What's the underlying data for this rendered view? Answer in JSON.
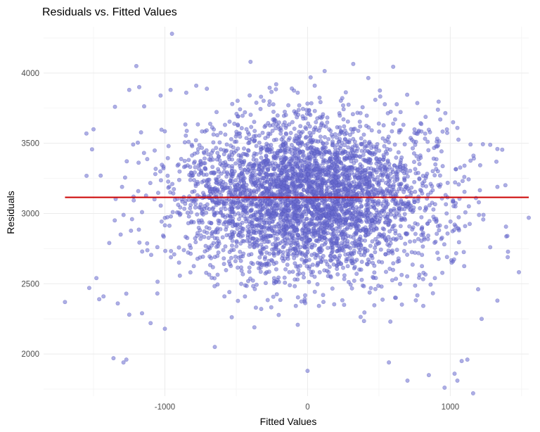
{
  "chart_data": {
    "type": "scatter",
    "title": "Residuals vs. Fitted Values",
    "xlabel": "Fitted Values",
    "ylabel": "Residuals",
    "xlim": [
      -1850,
      1550
    ],
    "ylim": [
      1700,
      4330
    ],
    "x_ticks": [
      -1000,
      0,
      1000
    ],
    "x_tick_labels": [
      "-1000",
      "0",
      "1000"
    ],
    "y_ticks": [
      2000,
      2500,
      3000,
      3500,
      4000
    ],
    "y_tick_labels": [
      "2000",
      "2500",
      "3000",
      "3500",
      "4000"
    ],
    "grid": true,
    "legend": "none",
    "point_color": "#6a6ccf",
    "reference_line": {
      "y": 3115,
      "x_range": [
        -1700,
        1550
      ],
      "color": "#cc0000"
    },
    "point_cloud": {
      "approx_count": 4000,
      "center_x": 0,
      "center_y": 3115,
      "sd_x": 450,
      "sd_y": 280,
      "seed": 7
    },
    "points": [
      {
        "x": -950,
        "y": 4280
      },
      {
        "x": -1200,
        "y": 4050
      },
      {
        "x": -400,
        "y": 4080
      },
      {
        "x": 320,
        "y": 4065
      },
      {
        "x": 600,
        "y": 4045
      },
      {
        "x": -1180,
        "y": 3900
      },
      {
        "x": -1250,
        "y": 3880
      },
      {
        "x": -1350,
        "y": 3760
      },
      {
        "x": -1550,
        "y": 3570
      },
      {
        "x": -1500,
        "y": 3600
      },
      {
        "x": -1450,
        "y": 3270
      },
      {
        "x": -1700,
        "y": 2370
      },
      {
        "x": -1530,
        "y": 2470
      },
      {
        "x": -1480,
        "y": 2540
      },
      {
        "x": -1460,
        "y": 2390
      },
      {
        "x": -1360,
        "y": 1970
      },
      {
        "x": -1290,
        "y": 1940
      },
      {
        "x": -1270,
        "y": 1960
      },
      {
        "x": -1000,
        "y": 2180
      },
      {
        "x": -1100,
        "y": 2220
      },
      {
        "x": -650,
        "y": 2050
      },
      {
        "x": 0,
        "y": 1880
      },
      {
        "x": 570,
        "y": 1940
      },
      {
        "x": 700,
        "y": 1810
      },
      {
        "x": 850,
        "y": 1850
      },
      {
        "x": 960,
        "y": 1760
      },
      {
        "x": 1030,
        "y": 1860
      },
      {
        "x": 1080,
        "y": 1950
      },
      {
        "x": 1120,
        "y": 1960
      },
      {
        "x": 1160,
        "y": 1720
      },
      {
        "x": 1050,
        "y": 1810
      },
      {
        "x": 1220,
        "y": 2250
      },
      {
        "x": 1330,
        "y": 2380
      },
      {
        "x": 1280,
        "y": 3490
      },
      {
        "x": 1330,
        "y": 3460
      },
      {
        "x": 1330,
        "y": 3190
      },
      {
        "x": 1400,
        "y": 2840
      },
      {
        "x": 1550,
        "y": 2970
      },
      {
        "x": 1200,
        "y": 3080
      },
      {
        "x": 1180,
        "y": 3110
      },
      {
        "x": 1050,
        "y": 3610
      },
      {
        "x": 1020,
        "y": 3650
      },
      {
        "x": 930,
        "y": 3670
      },
      {
        "x": 780,
        "y": 3590
      },
      {
        "x": 600,
        "y": 3640
      },
      {
        "x": -220,
        "y": 3920
      },
      {
        "x": -110,
        "y": 3890
      },
      {
        "x": 50,
        "y": 3910
      },
      {
        "x": -780,
        "y": 3910
      },
      {
        "x": -850,
        "y": 3860
      },
      {
        "x": -960,
        "y": 3880
      },
      {
        "x": -1030,
        "y": 3840
      },
      {
        "x": -1300,
        "y": 3190
      },
      {
        "x": -1220,
        "y": 3120
      },
      {
        "x": -1160,
        "y": 3010
      },
      {
        "x": -1230,
        "y": 2960
      },
      {
        "x": -1310,
        "y": 2850
      },
      {
        "x": -1390,
        "y": 2790
      },
      {
        "x": -1430,
        "y": 2410
      },
      {
        "x": -1330,
        "y": 2360
      },
      {
        "x": -1250,
        "y": 2280
      },
      {
        "x": -1160,
        "y": 2290
      }
    ]
  }
}
